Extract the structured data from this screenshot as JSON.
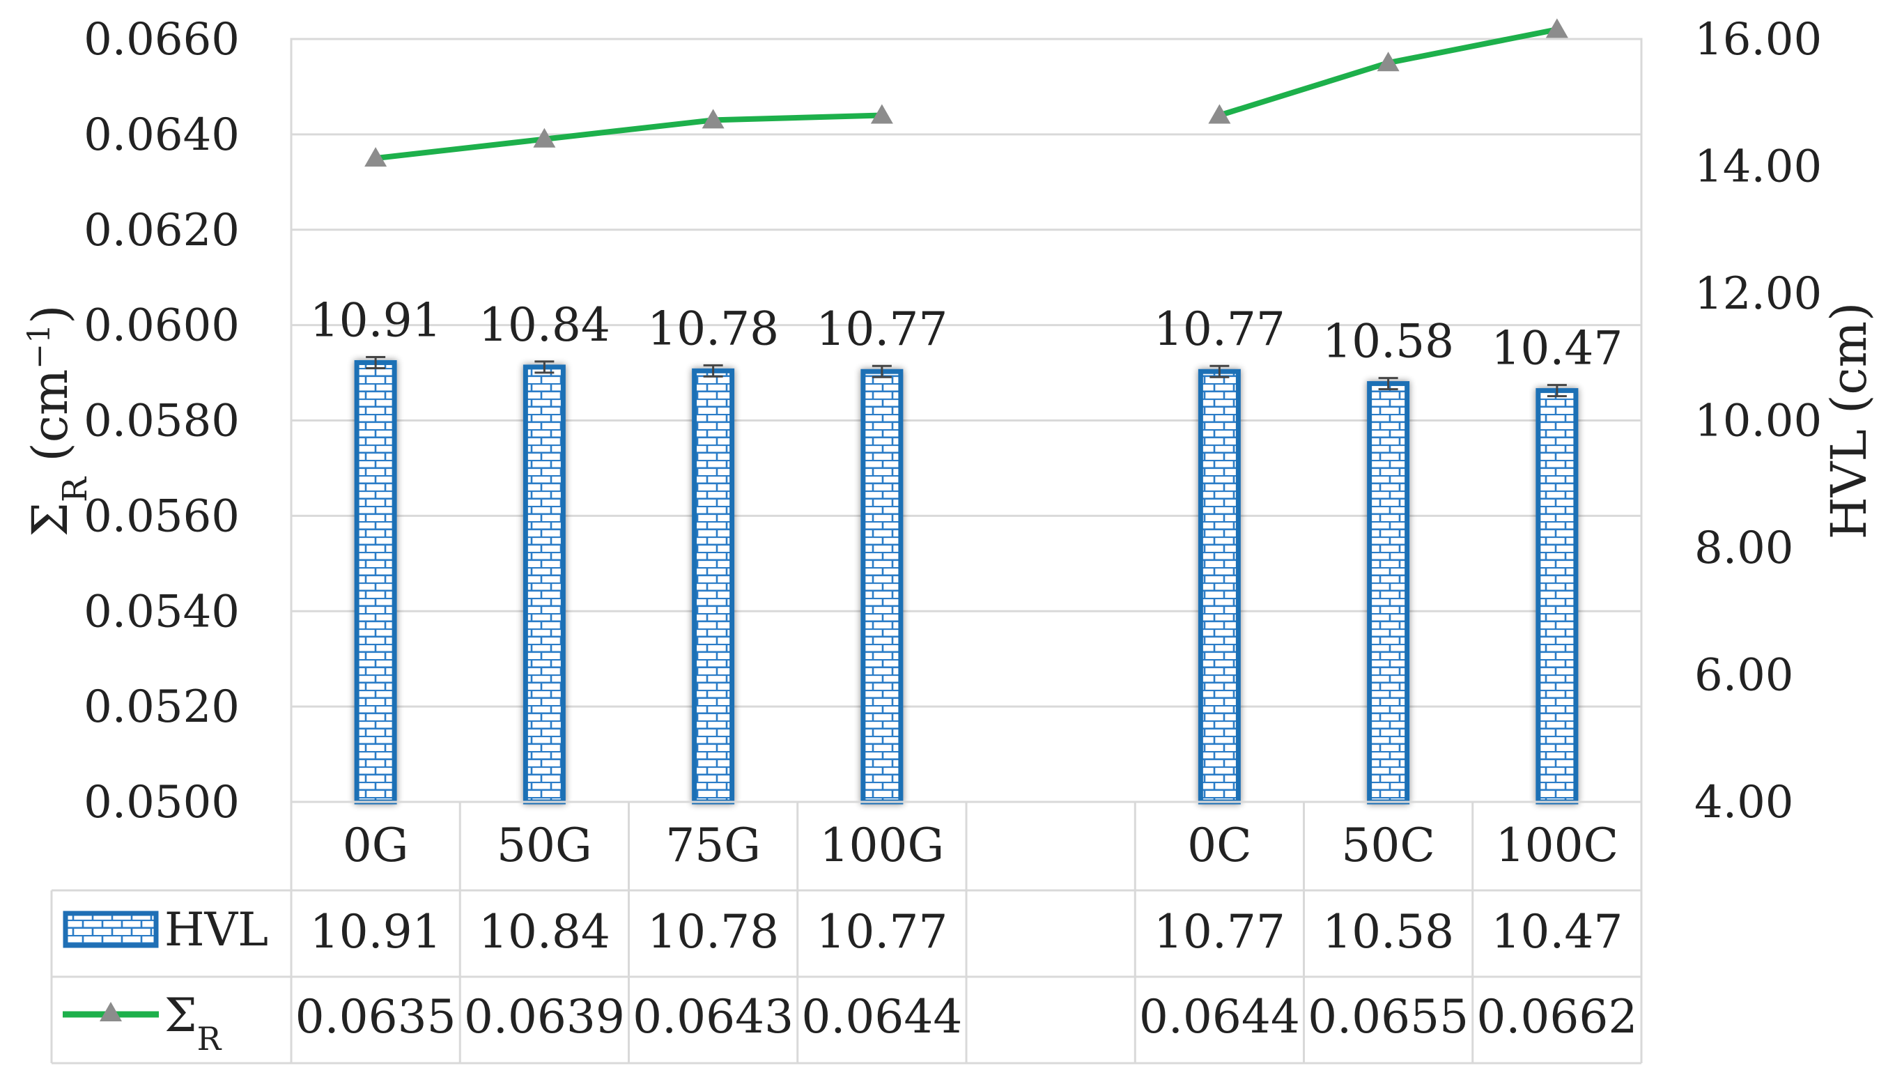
{
  "chart_data": {
    "type": "bar",
    "categories": [
      "0G",
      "50G",
      "75G",
      "100G",
      "",
      "0C",
      "50C",
      "100C"
    ],
    "left_axis": {
      "label": "Σ",
      "label_sub": "R",
      "label_unit_open": " (cm",
      "label_unit_exp": "−1",
      "label_unit_close": ")",
      "range": [
        0.05,
        0.066
      ],
      "ticks": [
        "0.0500",
        "0.0520",
        "0.0540",
        "0.0560",
        "0.0580",
        "0.0600",
        "0.0620",
        "0.0640",
        "0.0660"
      ]
    },
    "right_axis": {
      "label": "HVL (cm)",
      "range": [
        4,
        16
      ],
      "ticks": [
        "4.00",
        "6.00",
        "8.00",
        "10.00",
        "12.00",
        "14.00",
        "16.00"
      ]
    },
    "series": [
      {
        "name": "HVL",
        "type": "bar",
        "axis": "right",
        "color": "#1f6fb5",
        "values": [
          10.91,
          10.84,
          10.78,
          10.77,
          null,
          10.77,
          10.58,
          10.47
        ],
        "labels": [
          "10.91",
          "10.84",
          "10.78",
          "10.77",
          "",
          "10.77",
          "10.58",
          "10.47"
        ]
      },
      {
        "name": "Σ",
        "name_sub": "R",
        "type": "line",
        "axis": "left",
        "color": "#1db04b",
        "marker_color": "#8c8c8c",
        "values": [
          0.0635,
          0.0639,
          0.0643,
          0.0644,
          null,
          0.0644,
          0.0655,
          0.0662
        ],
        "labels": [
          "0.0635",
          "0.0639",
          "0.0643",
          "0.0644",
          "",
          "0.0644",
          "0.0655",
          "0.0662"
        ]
      }
    ],
    "grid": true,
    "legend": "data-table"
  }
}
